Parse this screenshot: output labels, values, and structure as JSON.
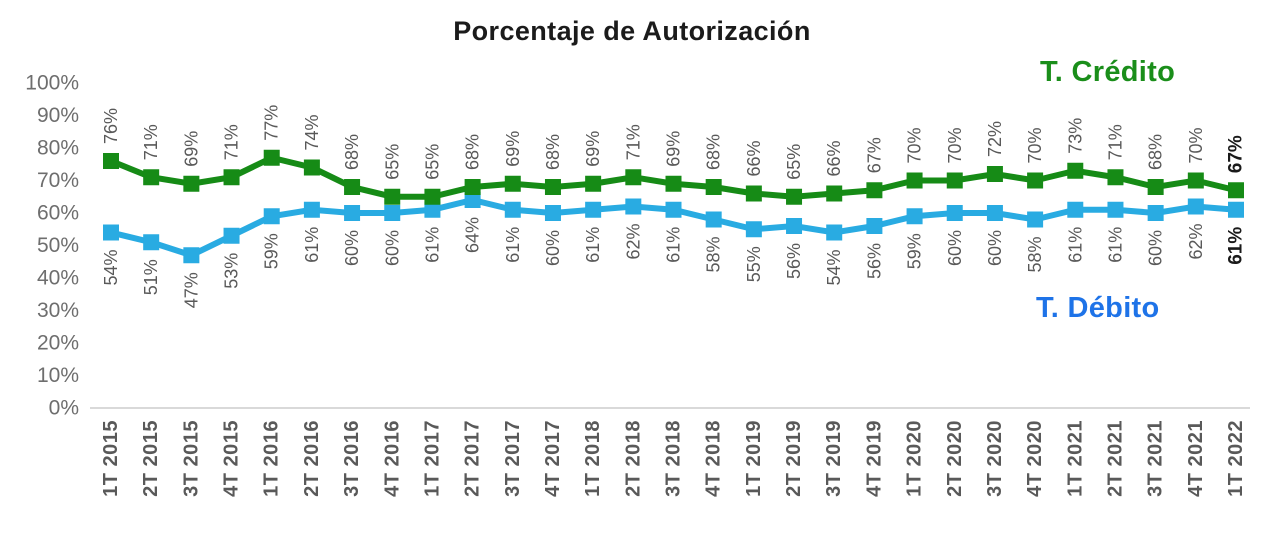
{
  "title": "Porcentaje de Autorización",
  "legend": {
    "credit": "T. Crédito",
    "debit": "T. Débito"
  },
  "colors": {
    "credit_line": "#168B16",
    "credit_legend": "#1A8E1A",
    "debit_line": "#29ABE2",
    "debit_legend": "#1E73E8",
    "data_label": "#595959",
    "data_label_last": "#1A1A1A",
    "x_tick": "#595959",
    "y_tick": "#6E6E6E",
    "axis_line": "#D9D9D9",
    "title_color": "#1B1B1B",
    "background": "#FFFFFF"
  },
  "chart_data": {
    "type": "line",
    "title": "Porcentaje de Autorización",
    "categories": [
      "1T 2015",
      "2T 2015",
      "3T 2015",
      "4T 2015",
      "1T 2016",
      "2T 2016",
      "3T 2016",
      "4T 2016",
      "1T 2017",
      "2T 2017",
      "3T 2017",
      "4T 2017",
      "1T 2018",
      "2T 2018",
      "3T 2018",
      "4T 2018",
      "1T 2019",
      "2T 2019",
      "3T 2019",
      "4T 2019",
      "1T 2020",
      "2T 2020",
      "3T 2020",
      "4T 2020",
      "1T 2021",
      "2T 2021",
      "3T 2021",
      "4T 2021",
      "1T 2022"
    ],
    "series": [
      {
        "name": "T. Crédito",
        "color_key": "credit_line",
        "values": [
          76,
          71,
          69,
          71,
          77,
          74,
          68,
          65,
          65,
          68,
          69,
          68,
          69,
          71,
          69,
          68,
          66,
          65,
          66,
          67,
          70,
          70,
          72,
          70,
          73,
          71,
          68,
          70,
          67
        ]
      },
      {
        "name": "T. Débito",
        "color_key": "debit_line",
        "values": [
          54,
          51,
          47,
          53,
          59,
          61,
          60,
          60,
          61,
          64,
          61,
          60,
          61,
          62,
          61,
          58,
          55,
          56,
          54,
          56,
          59,
          60,
          60,
          58,
          61,
          61,
          60,
          62,
          61
        ]
      }
    ],
    "y_ticks": [
      "0%",
      "10%",
      "20%",
      "30%",
      "40%",
      "50%",
      "60%",
      "70%",
      "80%",
      "90%",
      "100%"
    ],
    "ylim": [
      0,
      100
    ],
    "grid": false,
    "marker": "square",
    "data_labels": true,
    "data_label_suffix": "%",
    "last_label_bold": true,
    "x_labels_rotated": true,
    "legend_position": "inline-right"
  }
}
